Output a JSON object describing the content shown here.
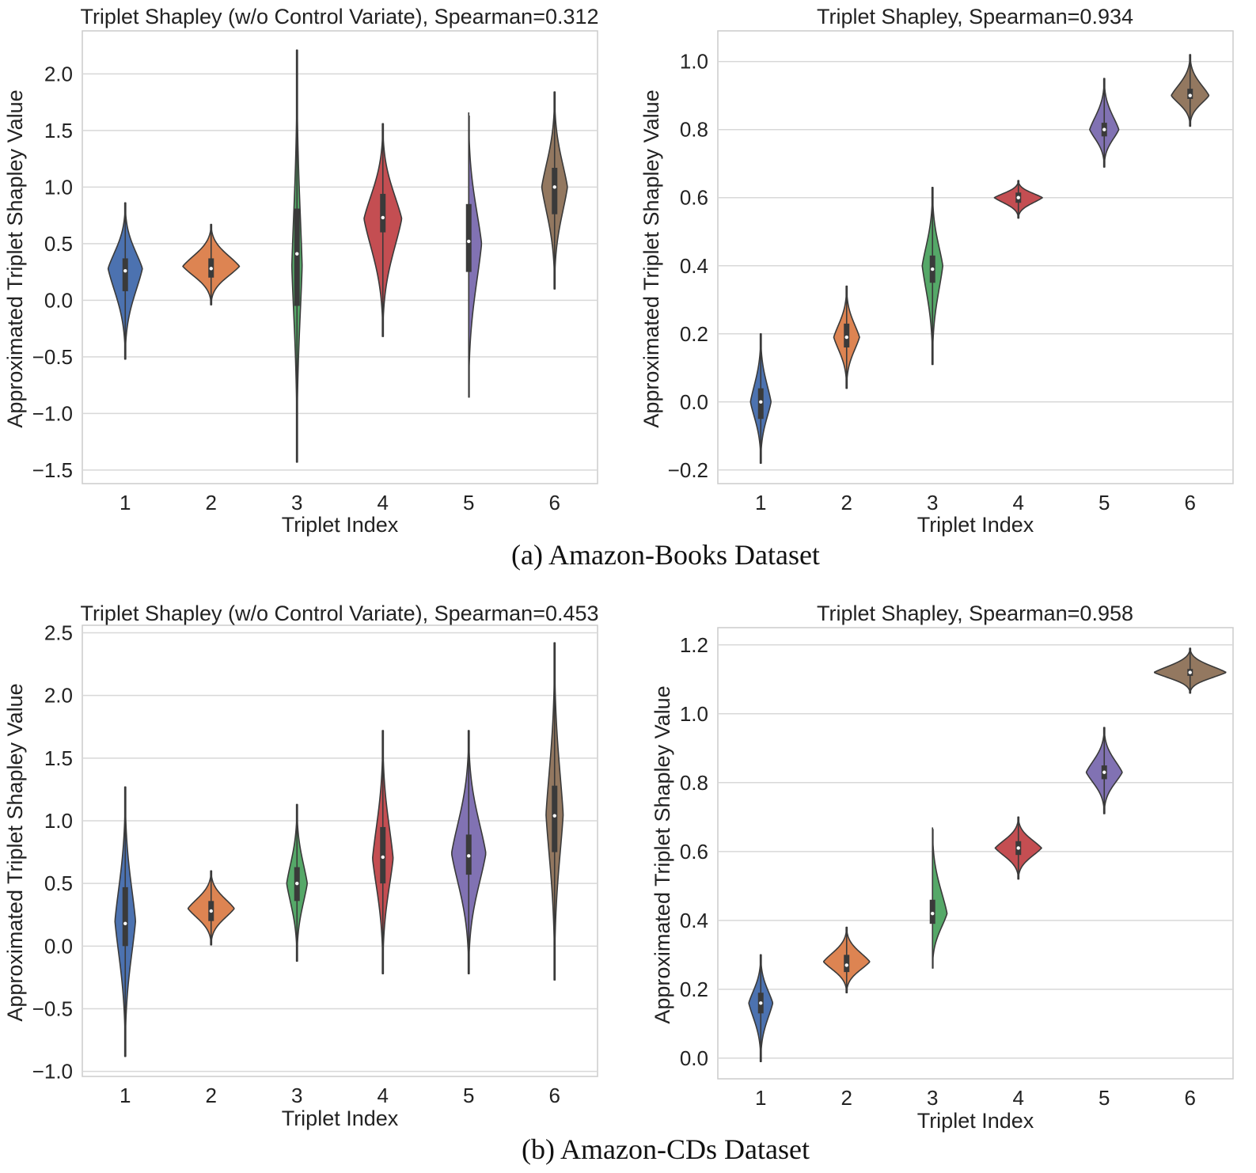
{
  "captions": [
    "(a) Amazon-Books Dataset",
    "(b) Amazon-CDs Dataset"
  ],
  "colors": [
    "#4c72b0",
    "#dd8452",
    "#55a868",
    "#c44e52",
    "#8172b3",
    "#937860"
  ],
  "chart_data": [
    {
      "type": "violin",
      "title": "Triplet Shapley (w/o Control Variate), Spearman=0.312",
      "xlabel": "Triplet Index",
      "ylabel": "Approximated Triplet Shapley Value",
      "categories": [
        "1",
        "2",
        "3",
        "4",
        "5",
        "6"
      ],
      "ylim": [
        -1.62,
        2.38
      ],
      "yticks": [
        -1.5,
        -1.0,
        -0.5,
        0.0,
        0.5,
        1.0,
        1.5,
        2.0
      ],
      "ytick_labels": [
        "−1.5",
        "−1.0",
        "−0.5",
        "0.0",
        "0.5",
        "1.0",
        "1.5",
        "2.0"
      ],
      "grid": true,
      "violins": [
        {
          "min": -0.52,
          "q1": 0.08,
          "median": 0.26,
          "q3": 0.37,
          "max": 0.86,
          "mode": 0.28,
          "halfwidth": 0.2
        },
        {
          "min": -0.04,
          "q1": 0.2,
          "median": 0.28,
          "q3": 0.37,
          "max": 0.67,
          "mode": 0.3,
          "halfwidth": 0.33
        },
        {
          "min": -1.43,
          "q1": -0.05,
          "median": 0.41,
          "q3": 0.81,
          "max": 2.21,
          "mode": 0.3,
          "halfwidth": 0.06
        },
        {
          "min": -0.32,
          "q1": 0.6,
          "median": 0.73,
          "q3": 0.94,
          "max": 1.56,
          "mode": 0.72,
          "halfwidth": 0.22
        },
        {
          "min": -0.86,
          "q1": 0.25,
          "median": 0.52,
          "q3": 0.85,
          "max": 1.66,
          "mode": 0.5,
          "halfwidth": 0.15
        },
        {
          "min": 0.1,
          "q1": 0.76,
          "median": 1.0,
          "q3": 1.17,
          "max": 1.84,
          "mode": 1.0,
          "halfwidth": 0.15
        }
      ]
    },
    {
      "type": "violin",
      "title": "Triplet Shapley, Spearman=0.934",
      "xlabel": "Triplet Index",
      "ylabel": "Approximated Triplet Shapley Value",
      "categories": [
        "1",
        "2",
        "3",
        "4",
        "5",
        "6"
      ],
      "ylim": [
        -0.24,
        1.09
      ],
      "yticks": [
        -0.2,
        0.0,
        0.2,
        0.4,
        0.6,
        0.8,
        1.0
      ],
      "ytick_labels": [
        "−0.2",
        "0.0",
        "0.2",
        "0.4",
        "0.6",
        "0.8",
        "1.0"
      ],
      "grid": true,
      "violins": [
        {
          "min": -0.18,
          "q1": -0.05,
          "median": 0.0,
          "q3": 0.04,
          "max": 0.2,
          "mode": 0.0,
          "halfwidth": 0.12
        },
        {
          "min": 0.04,
          "q1": 0.16,
          "median": 0.19,
          "q3": 0.23,
          "max": 0.34,
          "mode": 0.19,
          "halfwidth": 0.15
        },
        {
          "min": 0.11,
          "q1": 0.35,
          "median": 0.39,
          "q3": 0.43,
          "max": 0.63,
          "mode": 0.4,
          "halfwidth": 0.12
        },
        {
          "min": 0.54,
          "q1": 0.585,
          "median": 0.6,
          "q3": 0.615,
          "max": 0.65,
          "mode": 0.6,
          "halfwidth": 0.28
        },
        {
          "min": 0.69,
          "q1": 0.78,
          "median": 0.8,
          "q3": 0.82,
          "max": 0.95,
          "mode": 0.8,
          "halfwidth": 0.17
        },
        {
          "min": 0.81,
          "q1": 0.89,
          "median": 0.9,
          "q3": 0.92,
          "max": 1.02,
          "mode": 0.9,
          "halfwidth": 0.22
        }
      ]
    },
    {
      "type": "violin",
      "title": "Triplet Shapley (w/o Control Variate), Spearman=0.453",
      "xlabel": "Triplet Index",
      "ylabel": "Approximated Triplet Shapley Value",
      "categories": [
        "1",
        "2",
        "3",
        "4",
        "5",
        "6"
      ],
      "ylim": [
        -1.04,
        2.56
      ],
      "yticks": [
        -1.0,
        -0.5,
        0.0,
        0.5,
        1.0,
        1.5,
        2.0,
        2.5
      ],
      "ytick_labels": [
        "−1.0",
        "−0.5",
        "0.0",
        "0.5",
        "1.0",
        "1.5",
        "2.0",
        "2.5"
      ],
      "grid": true,
      "violins": [
        {
          "min": -0.88,
          "q1": 0.0,
          "median": 0.18,
          "q3": 0.47,
          "max": 1.27,
          "mode": 0.2,
          "halfwidth": 0.12
        },
        {
          "min": 0.01,
          "q1": 0.2,
          "median": 0.28,
          "q3": 0.36,
          "max": 0.6,
          "mode": 0.3,
          "halfwidth": 0.27
        },
        {
          "min": -0.12,
          "q1": 0.36,
          "median": 0.5,
          "q3": 0.63,
          "max": 1.13,
          "mode": 0.5,
          "halfwidth": 0.12
        },
        {
          "min": -0.22,
          "q1": 0.5,
          "median": 0.71,
          "q3": 0.95,
          "max": 1.72,
          "mode": 0.7,
          "halfwidth": 0.12
        },
        {
          "min": -0.22,
          "q1": 0.57,
          "median": 0.72,
          "q3": 0.89,
          "max": 1.72,
          "mode": 0.74,
          "halfwidth": 0.2
        },
        {
          "min": -0.27,
          "q1": 0.75,
          "median": 1.04,
          "q3": 1.28,
          "max": 2.42,
          "mode": 1.05,
          "halfwidth": 0.1
        }
      ]
    },
    {
      "type": "violin",
      "title": "Triplet Shapley, Spearman=0.958",
      "xlabel": "Triplet Index",
      "ylabel": "Approximated Triplet Shapley Value",
      "categories": [
        "1",
        "2",
        "3",
        "4",
        "5",
        "6"
      ],
      "ylim": [
        -0.06,
        1.25
      ],
      "yticks": [
        0.0,
        0.2,
        0.4,
        0.6,
        0.8,
        1.0,
        1.2
      ],
      "ytick_labels": [
        "0.0",
        "0.2",
        "0.4",
        "0.6",
        "0.8",
        "1.0",
        "1.2"
      ],
      "grid": true,
      "violins": [
        {
          "min": -0.01,
          "q1": 0.13,
          "median": 0.16,
          "q3": 0.19,
          "max": 0.3,
          "mode": 0.16,
          "halfwidth": 0.14
        },
        {
          "min": 0.19,
          "q1": 0.25,
          "median": 0.27,
          "q3": 0.3,
          "max": 0.38,
          "mode": 0.28,
          "halfwidth": 0.27
        },
        {
          "min": 0.26,
          "q1": 0.39,
          "median": 0.42,
          "q3": 0.46,
          "max": 0.67,
          "mode": 0.42,
          "halfwidth": 0.17
        },
        {
          "min": 0.52,
          "q1": 0.59,
          "median": 0.61,
          "q3": 0.63,
          "max": 0.7,
          "mode": 0.61,
          "halfwidth": 0.27
        },
        {
          "min": 0.71,
          "q1": 0.81,
          "median": 0.83,
          "q3": 0.85,
          "max": 0.96,
          "mode": 0.83,
          "halfwidth": 0.21
        },
        {
          "min": 1.06,
          "q1": 1.11,
          "median": 1.12,
          "q3": 1.13,
          "max": 1.19,
          "mode": 1.12,
          "halfwidth": 0.42
        }
      ]
    }
  ]
}
